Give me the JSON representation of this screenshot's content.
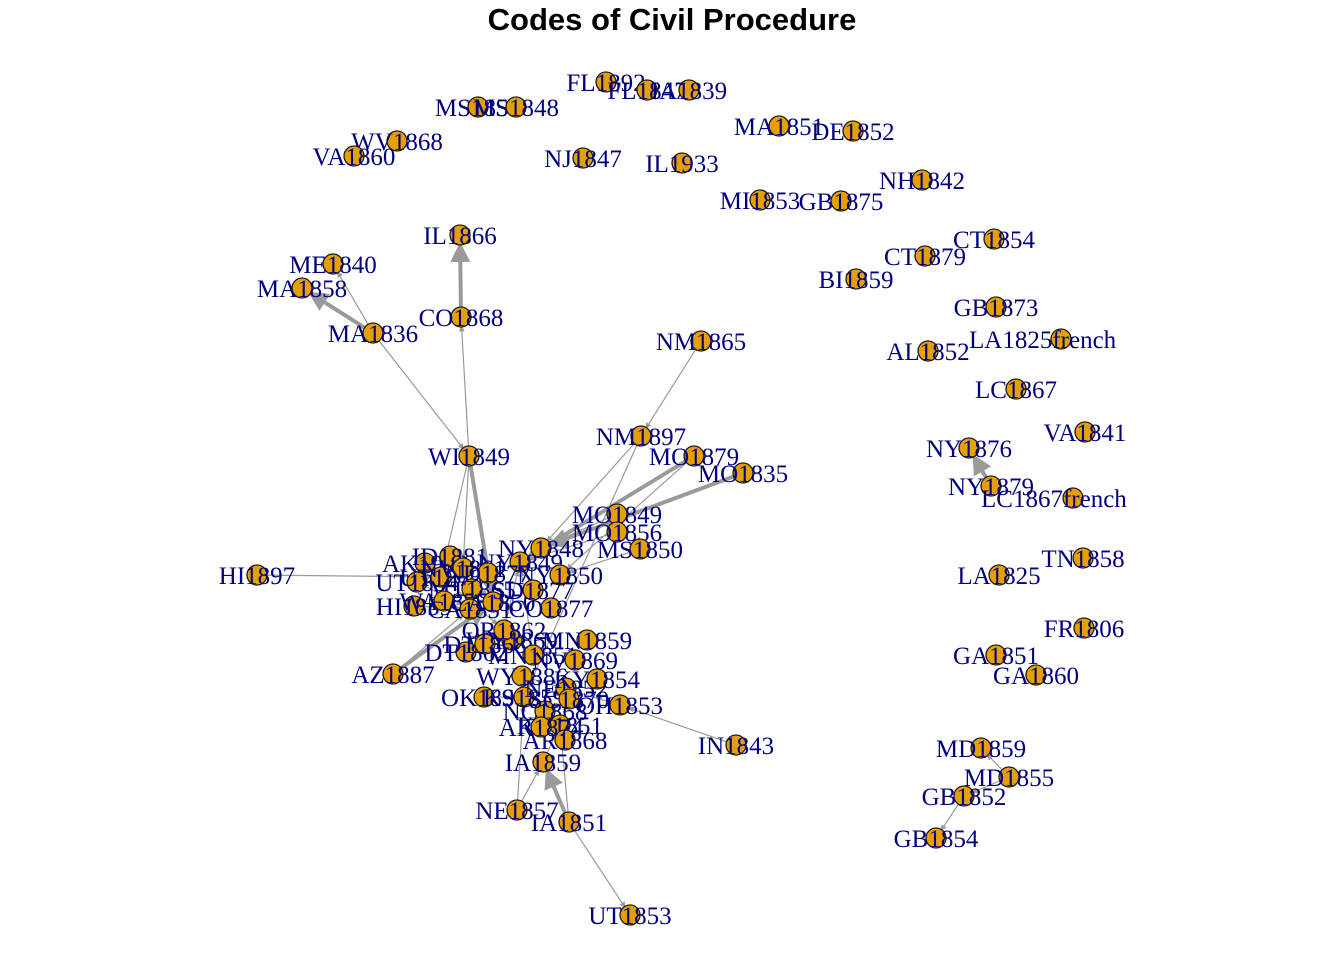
{
  "title": "Codes of Civil Procedure",
  "colors": {
    "node_fill": "#e69f00",
    "node_stroke": "#1a1a1a",
    "label": "#00007f",
    "edge": "#9a9a9a",
    "title": "#000000"
  },
  "nodes": [
    {
      "id": "FL1892",
      "label": "FL1892"
    },
    {
      "id": "FL1847",
      "label": "FL1847"
    },
    {
      "id": "IA1839",
      "label": "IA1839"
    },
    {
      "id": "MS1857",
      "label": "MS1857"
    },
    {
      "id": "MS1848",
      "label": "MS1848"
    },
    {
      "id": "MA1851",
      "label": "MA1851"
    },
    {
      "id": "DE1852",
      "label": "DE1852"
    },
    {
      "id": "WV1868",
      "label": "WV1868"
    },
    {
      "id": "VA1860",
      "label": "VA1860"
    },
    {
      "id": "NJ1847",
      "label": "NJ1847"
    },
    {
      "id": "IL1933",
      "label": "IL1933"
    },
    {
      "id": "NH1842",
      "label": "NH1842"
    },
    {
      "id": "MI1853",
      "label": "MI1853"
    },
    {
      "id": "GB1875",
      "label": "GB1875"
    },
    {
      "id": "IL1866",
      "label": "IL1866"
    },
    {
      "id": "CT1854",
      "label": "CT1854"
    },
    {
      "id": "CT1879",
      "label": "CT1879"
    },
    {
      "id": "ME1840",
      "label": "ME1840"
    },
    {
      "id": "BI1859",
      "label": "BI1859"
    },
    {
      "id": "MA1858",
      "label": "MA1858"
    },
    {
      "id": "GB1873",
      "label": "GB1873"
    },
    {
      "id": "CO1868",
      "label": "CO1868"
    },
    {
      "id": "LA1825french",
      "label": "LA1825french"
    },
    {
      "id": "MA1836",
      "label": "MA1836"
    },
    {
      "id": "NM1865",
      "label": "NM1865"
    },
    {
      "id": "AL1852",
      "label": "AL1852"
    },
    {
      "id": "LC1867",
      "label": "LC1867"
    },
    {
      "id": "VA1841",
      "label": "VA1841"
    },
    {
      "id": "NY1876",
      "label": "NY1876"
    },
    {
      "id": "NM1897",
      "label": "NM1897"
    },
    {
      "id": "WI1849",
      "label": "WI1849"
    },
    {
      "id": "MO1879",
      "label": "MO1879"
    },
    {
      "id": "MO1835",
      "label": "MO1835"
    },
    {
      "id": "NY1879",
      "label": "NY1879"
    },
    {
      "id": "LC1867french",
      "label": "LC1867french"
    },
    {
      "id": "MO1849",
      "label": "MO1849"
    },
    {
      "id": "MO1856",
      "label": "MO1856"
    },
    {
      "id": "MS1850",
      "label": "MS1850"
    },
    {
      "id": "TN1858",
      "label": "TN1858"
    },
    {
      "id": "HI1897",
      "label": "HI1897"
    },
    {
      "id": "LA1825",
      "label": "LA1825"
    },
    {
      "id": "FR1806",
      "label": "FR1806"
    },
    {
      "id": "GA1851",
      "label": "GA1851"
    },
    {
      "id": "GA1860",
      "label": "GA1860"
    },
    {
      "id": "AZ1887",
      "label": "AZ1887"
    },
    {
      "id": "IN1843",
      "label": "IN1843"
    },
    {
      "id": "MD1859",
      "label": "MD1859"
    },
    {
      "id": "MD1855",
      "label": "MD1855"
    },
    {
      "id": "GB1852",
      "label": "GB1852"
    },
    {
      "id": "IA1859",
      "label": "IA1859"
    },
    {
      "id": "NE1857",
      "label": "NE1857"
    },
    {
      "id": "IA1851",
      "label": "IA1851"
    },
    {
      "id": "GB1854",
      "label": "GB1854"
    },
    {
      "id": "UT1853",
      "label": "UT1853"
    },
    {
      "id": "AK1900",
      "label": "AK1900"
    },
    {
      "id": "UT1884",
      "label": "UT1884"
    },
    {
      "id": "UT1870",
      "label": "UT1870"
    },
    {
      "id": "HI1859",
      "label": "HI1859"
    },
    {
      "id": "ID1881",
      "label": "ID1881"
    },
    {
      "id": "MT1865",
      "label": "MT1865"
    },
    {
      "id": "NV1861",
      "label": "NV1861"
    },
    {
      "id": "WA1855",
      "label": "WA1855"
    },
    {
      "id": "CA1851",
      "label": "CA1851"
    },
    {
      "id": "CA1850",
      "label": "CA1850"
    },
    {
      "id": "WY1886",
      "label": "WY1886"
    },
    {
      "id": "WY1869",
      "label": "WY1869"
    },
    {
      "id": "DT1862",
      "label": "DT1862"
    },
    {
      "id": "DT1868",
      "label": "DT1868"
    },
    {
      "id": "OK1891",
      "label": "OK1891"
    },
    {
      "id": "KS1859",
      "label": "KS1859"
    },
    {
      "id": "NE1852",
      "label": "NE1852"
    },
    {
      "id": "OH1853",
      "label": "OH1853"
    },
    {
      "id": "NC1868",
      "label": "NC1868"
    },
    {
      "id": "SC1870",
      "label": "SC1870"
    },
    {
      "id": "KY1851",
      "label": "KY1851"
    },
    {
      "id": "AR1868",
      "label": "AR1868"
    },
    {
      "id": "AR1874",
      "label": "AR1874"
    },
    {
      "id": "OR1862",
      "label": "OR1862"
    },
    {
      "id": "MN1851",
      "label": "MN1851"
    },
    {
      "id": "NY1848",
      "label": "NY1848"
    },
    {
      "id": "NY1849",
      "label": "NY1849"
    },
    {
      "id": "NY1850",
      "label": "NY1850"
    },
    {
      "id": "CO1877",
      "label": "CO1877"
    },
    {
      "id": "ND1877",
      "label": "ND1877"
    },
    {
      "id": "SD1877",
      "label": "SD1877"
    },
    {
      "id": "NV1869",
      "label": "NV1869"
    },
    {
      "id": "KY1854",
      "label": "KY1854"
    },
    {
      "id": "MN1859",
      "label": "MN1859"
    }
  ],
  "edges": [
    [
      "MA1836",
      "ME1840"
    ],
    [
      "MA1836",
      "MA1858"
    ],
    [
      "MA1836",
      "WI1849"
    ],
    [
      "CO1868",
      "IL1866"
    ],
    [
      "WI1849",
      "CO1868"
    ],
    [
      "NM1865",
      "NM1897"
    ],
    [
      "WI1849",
      "UT1870"
    ],
    [
      "WI1849",
      "CA1850"
    ],
    [
      "WI1849",
      "NV1861"
    ],
    [
      "MO1879",
      "NY1849"
    ],
    [
      "MO1879",
      "NY1850"
    ],
    [
      "MO1835",
      "NY1848"
    ],
    [
      "MO1849",
      "NY1848"
    ],
    [
      "MO1856",
      "NY1849"
    ],
    [
      "MS1850",
      "NY1850"
    ],
    [
      "NM1897",
      "KS1859"
    ],
    [
      "NM1897",
      "NY1848"
    ],
    [
      "NY1879",
      "NY1876"
    ],
    [
      "MD1855",
      "MD1859"
    ],
    [
      "MD1855",
      "GB1852"
    ],
    [
      "GB1852",
      "GB1854"
    ],
    [
      "HI1897",
      "UT1870"
    ],
    [
      "AZ1887",
      "CA1850"
    ],
    [
      "AZ1887",
      "CA1851"
    ],
    [
      "IN1843",
      "OH1853"
    ],
    [
      "IA1859",
      "KY1851"
    ],
    [
      "NE1857",
      "IA1859"
    ],
    [
      "NE1857",
      "KS1859"
    ],
    [
      "IA1851",
      "IA1859"
    ],
    [
      "IA1851",
      "UT1853"
    ],
    [
      "IA1851",
      "KY1851"
    ],
    [
      "HI1859",
      "CA1851"
    ],
    [
      "ID1881",
      "CA1850"
    ],
    [
      "MT1865",
      "CA1851"
    ],
    [
      "WA1855",
      "CA1850"
    ],
    [
      "OK1891",
      "KS1859"
    ],
    [
      "WY1886",
      "OH1853"
    ],
    [
      "AR1868",
      "KY1851"
    ],
    [
      "AR1874",
      "KY1851"
    ],
    [
      "OR1862",
      "NY1849"
    ],
    [
      "MN1851",
      "NY1849"
    ],
    [
      "UT1884",
      "CA1851"
    ],
    [
      "AK1900",
      "OR1862"
    ]
  ]
}
